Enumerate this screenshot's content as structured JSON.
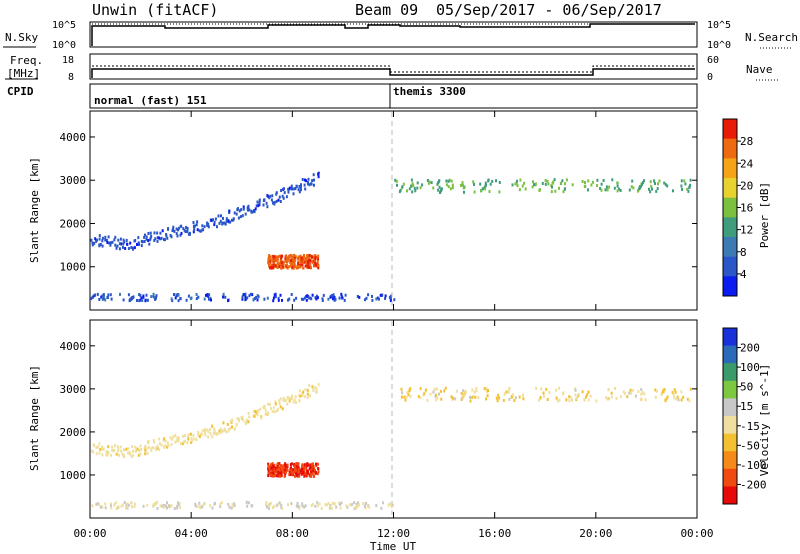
{
  "header": {
    "site": "Unwin (fitACF)",
    "beam": "Beam 09",
    "dates": "05/Sep/2017 - 06/Sep/2017"
  },
  "top_panels": {
    "nsky_label": "N.Sky",
    "nsky_ticks": [
      "10^5",
      "10^0"
    ],
    "nsearch_label": "N.Search",
    "nsearch_ticks": [
      "10^5",
      "10^0"
    ],
    "freq_label_line1": "Freq.",
    "freq_label_line2": "[MHz]",
    "freq_ticks": [
      "18",
      "8"
    ],
    "nave_label": "Nave",
    "nave_ticks": [
      "60",
      "0"
    ],
    "cpid_label": "CPID",
    "cpid_segments": [
      {
        "label": "normal (fast) 151",
        "start_hour": 0,
        "end_hour": 12
      },
      {
        "label": "themis 3300",
        "start_hour": 12,
        "end_hour": 24
      }
    ]
  },
  "x_axis": {
    "label": "Time UT",
    "ticks": [
      "00:00",
      "04:00",
      "08:00",
      "12:00",
      "16:00",
      "20:00",
      "00:00"
    ],
    "tick_hours": [
      0,
      4,
      8,
      12,
      16,
      20,
      24
    ]
  },
  "colors": {
    "power_scale": [
      "#0a1cf0",
      "#2a56c8",
      "#3b7ab4",
      "#3f9c7c",
      "#7cc040",
      "#e8d230",
      "#f5a418",
      "#ee6a10",
      "#e81a08"
    ],
    "velocity_scale": [
      "#e80a08",
      "#f04a10",
      "#f58a18",
      "#f2c030",
      "#f0e0a0",
      "#c8c8c8",
      "#7cc840",
      "#3a9a6a",
      "#2a6ab8",
      "#1a30d8"
    ]
  },
  "chart_data": [
    {
      "type": "heatmap",
      "title": "",
      "xlabel": "Time UT",
      "ylabel": "Slant Range [km]",
      "xlim": [
        0,
        24
      ],
      "ylim": [
        0,
        4600
      ],
      "y_ticks": [
        1000,
        2000,
        3000,
        4000
      ],
      "colorbar_label": "Power [dB]",
      "colorbar_ticks": [
        "4",
        "8",
        "12",
        "16",
        "20",
        "24",
        "28"
      ],
      "features": [
        {
          "desc": "echo band",
          "x": [
            0.0,
            1.5,
            3.0,
            4.5,
            6.0,
            7.5,
            9.0
          ],
          "y": [
            1650,
            1550,
            1800,
            2000,
            2300,
            2700,
            3100
          ],
          "power": 5
        },
        {
          "desc": "strong patch",
          "x": [
            7.0,
            9.0
          ],
          "y": [
            1000,
            1300
          ],
          "power": 28
        },
        {
          "desc": "near range",
          "x": [
            0.0,
            12.0
          ],
          "y": [
            250,
            400
          ],
          "power": 5
        },
        {
          "desc": "afternoon band",
          "x": [
            12.0,
            24.0
          ],
          "y": [
            2750,
            3050
          ],
          "power": 14
        }
      ]
    },
    {
      "type": "heatmap",
      "title": "",
      "xlabel": "Time UT",
      "ylabel": "Slant Range [km]",
      "xlim": [
        0,
        24
      ],
      "ylim": [
        0,
        4600
      ],
      "y_ticks": [
        1000,
        2000,
        3000,
        4000
      ],
      "colorbar_label": "Velocity [m s^-1]",
      "colorbar_ticks": [
        "200",
        "100",
        "50",
        "15",
        "-15",
        "-50",
        "-100",
        "-200"
      ],
      "features": [
        {
          "desc": "echo band",
          "x": [
            0.0,
            1.5,
            3.0,
            4.5,
            6.0,
            7.5,
            9.0
          ],
          "y": [
            1650,
            1550,
            1800,
            2000,
            2300,
            2700,
            3100
          ],
          "velocity": -30
        },
        {
          "desc": "strong patch",
          "x": [
            7.0,
            9.0
          ],
          "y": [
            1000,
            1300
          ],
          "velocity": -200
        },
        {
          "desc": "near range",
          "x": [
            0.0,
            12.0
          ],
          "y": [
            250,
            400
          ],
          "velocity": 0
        },
        {
          "desc": "afternoon band",
          "x": [
            12.0,
            24.0
          ],
          "y": [
            2750,
            3050
          ],
          "velocity": -40
        }
      ]
    }
  ]
}
